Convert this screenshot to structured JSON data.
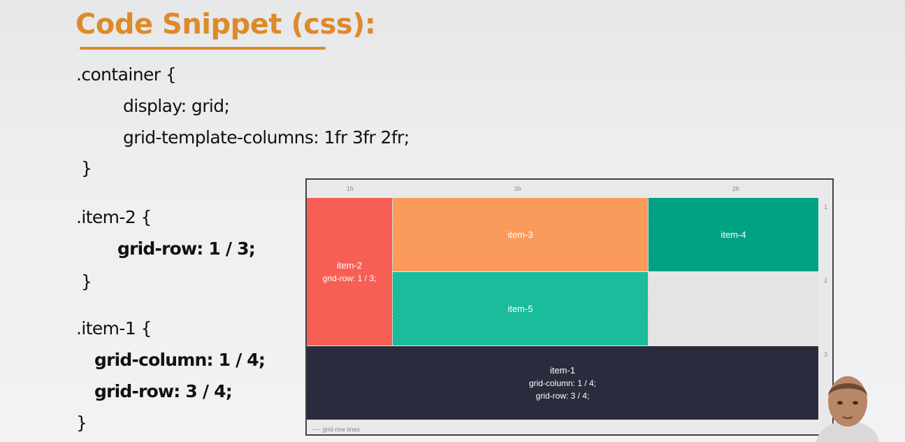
{
  "slide": {
    "title": "Code Snippet (css):",
    "code_lines": [
      ".container {",
      "display: grid;",
      "grid-template-columns: 1fr 3fr 2fr;",
      "}",
      ".item-2 {",
      "grid-row: 1 / 3;",
      "}",
      ".item-1 {",
      "grid-column: 1 / 4;",
      "grid-row: 3 / 4;",
      "}"
    ]
  },
  "demo_grid": {
    "column_labels": [
      "1fr",
      "3fr",
      "2fr"
    ],
    "row_labels": [
      "1",
      "2",
      "3"
    ],
    "items": [
      {
        "name": "item-2",
        "detail": "grid-row: 1 / 3;",
        "color": "#f75f55"
      },
      {
        "name": "item-3",
        "detail": "",
        "color": "#fb9b5b"
      },
      {
        "name": "item-4",
        "detail": "",
        "color": "#00a283"
      },
      {
        "name": "item-5",
        "detail": "",
        "color": "#1abc9c"
      },
      {
        "name": "item-1",
        "detail_line1": "grid-column: 1 / 4;",
        "detail_line2": "grid-row: 3 / 4;",
        "color": "#2a2b3d"
      }
    ],
    "legend": "----  grid-row lines"
  },
  "colors": {
    "title": "#dd8a2a",
    "background": "#eeeff1"
  }
}
